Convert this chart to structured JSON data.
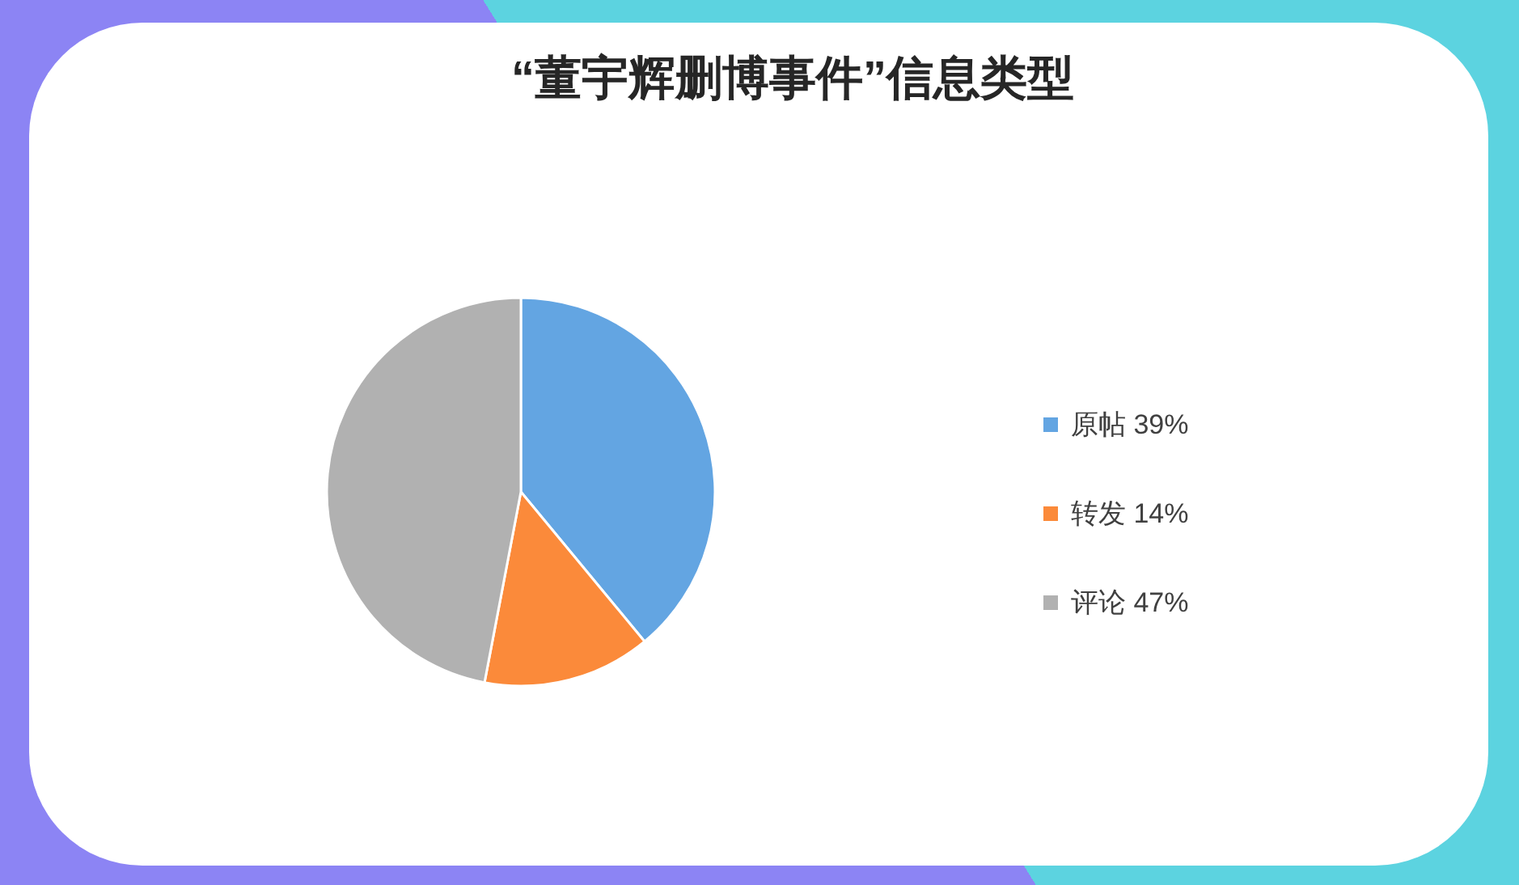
{
  "chart_data": {
    "type": "pie",
    "title": "“董宇辉删博事件”信息类型",
    "categories": [
      "原帖 39%",
      "转发 14%",
      "评论 47%"
    ],
    "values": [
      39,
      14,
      47
    ],
    "colors": [
      "#63a5e2",
      "#fb8a3a",
      "#b1b1b1"
    ],
    "legend": "right"
  }
}
